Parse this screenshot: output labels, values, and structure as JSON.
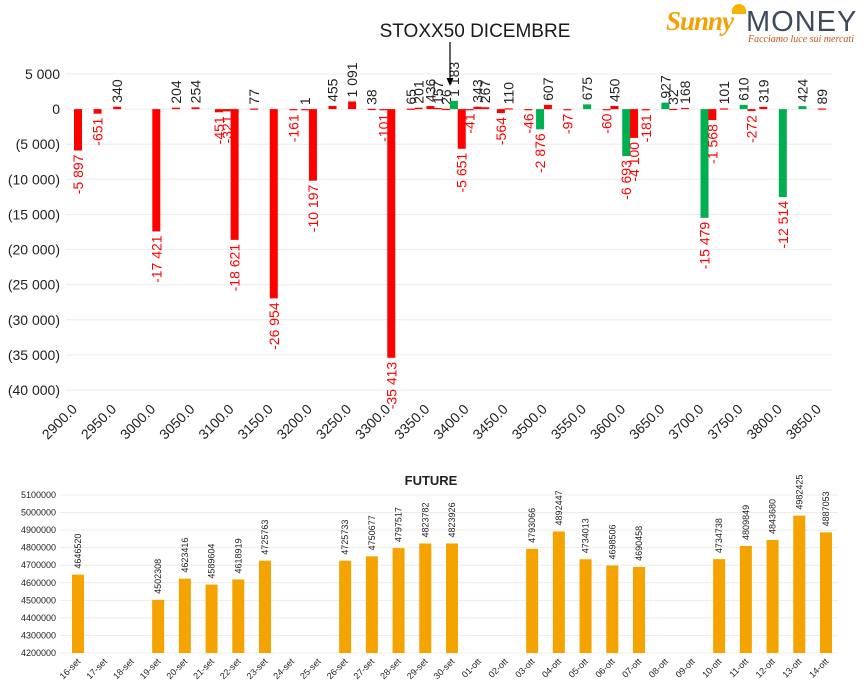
{
  "logo": {
    "word1": "Sunny",
    "word2": "MONEY",
    "tagline": "Facciamo luce sui mercati"
  },
  "colors": {
    "negative": "#ff0000",
    "positive": "#00b050",
    "future": "#f4a300",
    "marker": "#000000"
  },
  "chart_data": [
    {
      "type": "bar",
      "title": "STOXX50 DICEMBRE",
      "ylim": [
        -40000,
        5000
      ],
      "yticks": [
        5000,
        0,
        -5000,
        -10000,
        -15000,
        -20000,
        -25000,
        -30000,
        -35000,
        -40000
      ],
      "ytick_labels": [
        "5 000",
        "0",
        "(5 000)",
        "(10 000)",
        "(15 000)",
        "(20 000)",
        "(25 000)",
        "(30 000)",
        "(35 000)",
        "(40 000)"
      ],
      "categories": [
        "2900.0",
        "2950.0",
        "3000.0",
        "3050.0",
        "3100.0",
        "3150.0",
        "3200.0",
        "3250.0",
        "3300.0",
        "3350.0",
        "3400.0",
        "3450.0",
        "3500.0",
        "3550.0",
        "3600.0",
        "3650.0",
        "3700.0",
        "3750.0",
        "3800.0",
        "3850.0"
      ],
      "grid": true,
      "marker_strike": "3375.0",
      "bars": [
        {
          "x": 2900,
          "value": -5897,
          "label": "-5 897"
        },
        {
          "x": 2925,
          "value": -651,
          "label": "-651"
        },
        {
          "x": 2950,
          "value": 340,
          "label": "340"
        },
        {
          "x": 3000,
          "value": -17421,
          "label": "-17 421"
        },
        {
          "x": 3025,
          "value": 204,
          "label": "204"
        },
        {
          "x": 3050,
          "value": 254,
          "label": "254"
        },
        {
          "x": 3080,
          "value": -451,
          "label": "-451"
        },
        {
          "x": 3090,
          "value": -321,
          "label": "-321"
        },
        {
          "x": 3100,
          "value": -18621,
          "label": "-18 621"
        },
        {
          "x": 3125,
          "value": 77,
          "label": "77"
        },
        {
          "x": 3150,
          "value": -26954,
          "label": "-26 954"
        },
        {
          "x": 3175,
          "value": -161,
          "label": "-161"
        },
        {
          "x": 3190,
          "value": 1,
          "label": "1"
        },
        {
          "x": 3200,
          "value": -10197,
          "label": "-10 197"
        },
        {
          "x": 3225,
          "value": 455,
          "label": "455"
        },
        {
          "x": 3250,
          "value": 1091,
          "label": "1 091"
        },
        {
          "x": 3275,
          "value": 38,
          "label": "38"
        },
        {
          "x": 3290,
          "value": -101,
          "label": "-101"
        },
        {
          "x": 3300,
          "value": -35413,
          "label": "-35 413"
        },
        {
          "x": 3325,
          "value": 65,
          "label": "65"
        },
        {
          "x": 3335,
          "value": 201,
          "label": "201"
        },
        {
          "x": 3350,
          "value": 436,
          "label": "436"
        },
        {
          "x": 3360,
          "value": 157,
          "label": "157"
        },
        {
          "x": 3370,
          "value": 26,
          "label": "26"
        },
        {
          "x": 3380,
          "value": 1183,
          "label": "1 183"
        },
        {
          "x": 3390,
          "value": -5651,
          "label": "-5 651"
        },
        {
          "x": 3400,
          "value": -41,
          "label": "-41"
        },
        {
          "x": 3410,
          "value": 343,
          "label": "343"
        },
        {
          "x": 3420,
          "value": 267,
          "label": "267"
        },
        {
          "x": 3440,
          "value": -564,
          "label": "-564"
        },
        {
          "x": 3450,
          "value": 110,
          "label": "110"
        },
        {
          "x": 3475,
          "value": -46,
          "label": "-46"
        },
        {
          "x": 3490,
          "value": -2876,
          "label": "-2 876"
        },
        {
          "x": 3500,
          "value": 607,
          "label": "607"
        },
        {
          "x": 3525,
          "value": -97,
          "label": "-97"
        },
        {
          "x": 3550,
          "value": 675,
          "label": "675"
        },
        {
          "x": 3575,
          "value": -60,
          "label": "-60"
        },
        {
          "x": 3585,
          "value": 450,
          "label": "450"
        },
        {
          "x": 3600,
          "value": -6693,
          "label": "-6 693"
        },
        {
          "x": 3610,
          "value": -4100,
          "label": "-4 100"
        },
        {
          "x": 3625,
          "value": -181,
          "label": "-181"
        },
        {
          "x": 3650,
          "value": 927,
          "label": "927"
        },
        {
          "x": 3660,
          "value": 32,
          "label": "32"
        },
        {
          "x": 3675,
          "value": 168,
          "label": "168"
        },
        {
          "x": 3700,
          "value": -15479,
          "label": "-15 479"
        },
        {
          "x": 3710,
          "value": -1568,
          "label": "-1 568"
        },
        {
          "x": 3725,
          "value": 101,
          "label": "101"
        },
        {
          "x": 3750,
          "value": 610,
          "label": "610"
        },
        {
          "x": 3760,
          "value": -272,
          "label": "-272"
        },
        {
          "x": 3775,
          "value": 319,
          "label": "319"
        },
        {
          "x": 3800,
          "value": -12514,
          "label": "-12 514"
        },
        {
          "x": 3825,
          "value": 424,
          "label": "424"
        },
        {
          "x": 3850,
          "value": 89,
          "label": "89"
        }
      ]
    },
    {
      "type": "bar",
      "title": "FUTURE",
      "ylim": [
        4200000,
        5100000
      ],
      "yticks": [
        4200000,
        4300000,
        4400000,
        4500000,
        4600000,
        4700000,
        4800000,
        4900000,
        5000000,
        5100000
      ],
      "ytick_labels": [
        "4200000",
        "4300000",
        "4400000",
        "4500000",
        "4600000",
        "4700000",
        "4800000",
        "4900000",
        "5000000",
        "5100000"
      ],
      "categories": [
        "16-set",
        "17-set",
        "18-set",
        "19-set",
        "20-set",
        "21-set",
        "22-set",
        "23-set",
        "24-set",
        "25-set",
        "26-set",
        "27-set",
        "28-set",
        "29-set",
        "30-set",
        "01-ott",
        "02-ott",
        "03-ott",
        "04-ott",
        "05-ott",
        "06-ott",
        "07-ott",
        "08-ott",
        "09-ott",
        "10-ott",
        "11-ott",
        "12-ott",
        "13-ott",
        "14-ott"
      ],
      "values": [
        4646520,
        null,
        null,
        4502308,
        4623416,
        4589604,
        4618919,
        4725763,
        null,
        null,
        4725733,
        4750677,
        4797517,
        4823782,
        4823926,
        null,
        null,
        4793066,
        4892447,
        4734013,
        4698506,
        4690458,
        null,
        null,
        4734738,
        4809849,
        4843680,
        4982425,
        4887053
      ]
    }
  ]
}
